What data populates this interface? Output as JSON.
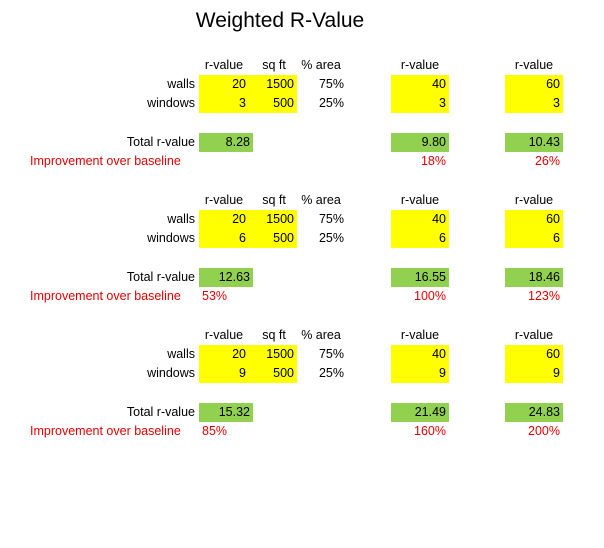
{
  "title": "Weighted R-Value",
  "header": {
    "r_value": "r-value",
    "sq_ft": "sq ft",
    "pct_area": "% area"
  },
  "labels": {
    "walls": "walls",
    "windows": "windows",
    "total": "Total r-value",
    "improvement": "Improvement over baseline"
  },
  "colors": {
    "input": "#ffff00",
    "total": "#92d050",
    "improvement_text": "#e00000"
  },
  "blocks": [
    {
      "walls": {
        "r_value": "20",
        "sq_ft": "1500",
        "pct": "75%"
      },
      "windows": {
        "r_value": "3",
        "sq_ft": "500",
        "pct": "25%"
      },
      "total": "8.28",
      "improvement": "",
      "scenarios": [
        {
          "walls": "40",
          "windows": "3",
          "total": "9.80",
          "improvement": "18%"
        },
        {
          "walls": "60",
          "windows": "3",
          "total": "10.43",
          "improvement": "26%"
        }
      ]
    },
    {
      "walls": {
        "r_value": "20",
        "sq_ft": "1500",
        "pct": "75%"
      },
      "windows": {
        "r_value": "6",
        "sq_ft": "500",
        "pct": "25%"
      },
      "total": "12.63",
      "improvement": "53%",
      "scenarios": [
        {
          "walls": "40",
          "windows": "6",
          "total": "16.55",
          "improvement": "100%"
        },
        {
          "walls": "60",
          "windows": "6",
          "total": "18.46",
          "improvement": "123%"
        }
      ]
    },
    {
      "walls": {
        "r_value": "20",
        "sq_ft": "1500",
        "pct": "75%"
      },
      "windows": {
        "r_value": "9",
        "sq_ft": "500",
        "pct": "25%"
      },
      "total": "15.32",
      "improvement": "85%",
      "scenarios": [
        {
          "walls": "40",
          "windows": "9",
          "total": "21.49",
          "improvement": "160%"
        },
        {
          "walls": "60",
          "windows": "9",
          "total": "24.83",
          "improvement": "200%"
        }
      ]
    }
  ]
}
